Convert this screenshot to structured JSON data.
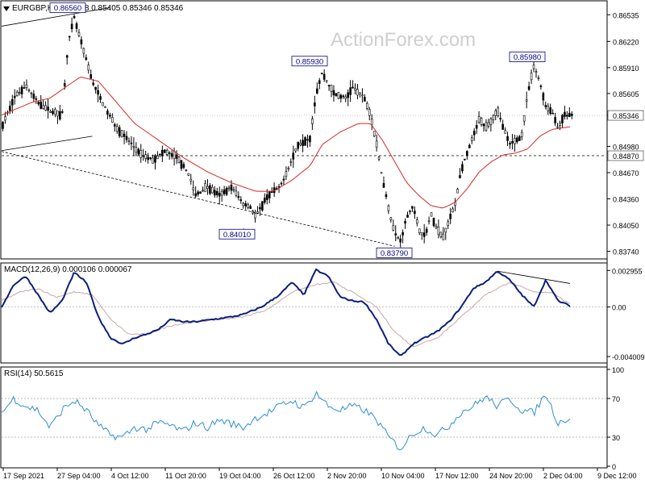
{
  "header": {
    "symbol_line": "EURGBP,H4  0.85388 0.85405 0.85346 0.85346"
  },
  "watermark": "ActionForex.com",
  "colors": {
    "candle": "#000000",
    "sma": "#d62728",
    "macd_line": "#0b1f7a",
    "macd_signal": "#c8a8a8",
    "rsi": "#2f8fd0",
    "annotation": "#000080",
    "trendline": "#000000",
    "grid": "#a0a0a0"
  },
  "chart_data": [
    {
      "type": "candlestick",
      "name": "price",
      "title": "EURGBP,H4",
      "ylim": [
        0.8366,
        0.8669
      ],
      "y_ticks": [
        "0.86535",
        "0.86220",
        "0.85910",
        "0.85605",
        "0.85346",
        "0.84980",
        "0.84670",
        "0.84360",
        "0.84050",
        "0.83740"
      ],
      "current_price": "0.85346",
      "horizontal_level": "0.84870",
      "annotations": [
        {
          "label": "0.86560",
          "x": 0.12,
          "y": 0.8656
        },
        {
          "label": "0.85930",
          "x": 0.52,
          "y": 0.8593
        },
        {
          "label": "0.84010",
          "x": 0.4,
          "y": 0.8401
        },
        {
          "label": "0.83790",
          "x": 0.66,
          "y": 0.8379
        },
        {
          "label": "0.85980",
          "x": 0.88,
          "y": 0.8598
        }
      ],
      "anchors": [
        [
          0.0,
          0.852
        ],
        [
          0.02,
          0.8555
        ],
        [
          0.04,
          0.857
        ],
        [
          0.06,
          0.855
        ],
        [
          0.08,
          0.854
        ],
        [
          0.1,
          0.8535
        ],
        [
          0.11,
          0.862
        ],
        [
          0.12,
          0.865
        ],
        [
          0.13,
          0.8625
        ],
        [
          0.15,
          0.8575
        ],
        [
          0.17,
          0.8545
        ],
        [
          0.19,
          0.852
        ],
        [
          0.21,
          0.8505
        ],
        [
          0.23,
          0.8488
        ],
        [
          0.25,
          0.8482
        ],
        [
          0.27,
          0.8492
        ],
        [
          0.29,
          0.8485
        ],
        [
          0.31,
          0.8465
        ],
        [
          0.32,
          0.844
        ],
        [
          0.34,
          0.845
        ],
        [
          0.36,
          0.844
        ],
        [
          0.38,
          0.845
        ],
        [
          0.4,
          0.843
        ],
        [
          0.41,
          0.8428
        ],
        [
          0.42,
          0.8415
        ],
        [
          0.44,
          0.844
        ],
        [
          0.46,
          0.845
        ],
        [
          0.47,
          0.8465
        ],
        [
          0.49,
          0.85
        ],
        [
          0.51,
          0.8508
        ],
        [
          0.52,
          0.856
        ],
        [
          0.53,
          0.8585
        ],
        [
          0.55,
          0.856
        ],
        [
          0.57,
          0.8555
        ],
        [
          0.58,
          0.8568
        ],
        [
          0.6,
          0.8555
        ],
        [
          0.61,
          0.8535
        ],
        [
          0.62,
          0.85
        ],
        [
          0.63,
          0.846
        ],
        [
          0.64,
          0.8425
        ],
        [
          0.65,
          0.8395
        ],
        [
          0.66,
          0.8386
        ],
        [
          0.67,
          0.8415
        ],
        [
          0.68,
          0.8428
        ],
        [
          0.69,
          0.84
        ],
        [
          0.7,
          0.8392
        ],
        [
          0.71,
          0.8418
        ],
        [
          0.72,
          0.84
        ],
        [
          0.73,
          0.839
        ],
        [
          0.74,
          0.841
        ],
        [
          0.75,
          0.843
        ],
        [
          0.76,
          0.847
        ],
        [
          0.77,
          0.849
        ],
        [
          0.78,
          0.851
        ],
        [
          0.79,
          0.853
        ],
        [
          0.8,
          0.852
        ],
        [
          0.81,
          0.8528
        ],
        [
          0.82,
          0.854
        ],
        [
          0.83,
          0.852
        ],
        [
          0.84,
          0.85
        ],
        [
          0.85,
          0.8505
        ],
        [
          0.86,
          0.851
        ],
        [
          0.87,
          0.856
        ],
        [
          0.88,
          0.8592
        ],
        [
          0.89,
          0.8575
        ],
        [
          0.9,
          0.8545
        ],
        [
          0.91,
          0.854
        ],
        [
          0.92,
          0.852
        ],
        [
          0.93,
          0.8535
        ],
        [
          0.94,
          0.8535
        ]
      ],
      "sma_anchors": [
        [
          0.0,
          0.8535
        ],
        [
          0.05,
          0.855
        ],
        [
          0.08,
          0.8555
        ],
        [
          0.1,
          0.8565
        ],
        [
          0.13,
          0.858
        ],
        [
          0.16,
          0.8575
        ],
        [
          0.19,
          0.855
        ],
        [
          0.22,
          0.8525
        ],
        [
          0.26,
          0.8505
        ],
        [
          0.3,
          0.8485
        ],
        [
          0.34,
          0.8468
        ],
        [
          0.38,
          0.8455
        ],
        [
          0.42,
          0.8445
        ],
        [
          0.45,
          0.8445
        ],
        [
          0.48,
          0.8458
        ],
        [
          0.51,
          0.8475
        ],
        [
          0.53,
          0.85
        ],
        [
          0.56,
          0.8515
        ],
        [
          0.59,
          0.8525
        ],
        [
          0.61,
          0.8525
        ],
        [
          0.63,
          0.8505
        ],
        [
          0.65,
          0.848
        ],
        [
          0.67,
          0.8455
        ],
        [
          0.69,
          0.844
        ],
        [
          0.71,
          0.8428
        ],
        [
          0.73,
          0.8425
        ],
        [
          0.75,
          0.8432
        ],
        [
          0.77,
          0.8448
        ],
        [
          0.79,
          0.8468
        ],
        [
          0.81,
          0.848
        ],
        [
          0.83,
          0.8488
        ],
        [
          0.85,
          0.849
        ],
        [
          0.87,
          0.8495
        ],
        [
          0.89,
          0.851
        ],
        [
          0.91,
          0.8518
        ],
        [
          0.93,
          0.852
        ],
        [
          0.94,
          0.8521
        ]
      ],
      "trendlines": [
        {
          "from": [
            0.0,
            0.864
          ],
          "to": [
            0.18,
            0.8662
          ],
          "style": "solid"
        },
        {
          "from": [
            0.0,
            0.8493
          ],
          "to": [
            0.15,
            0.851
          ],
          "style": "solid"
        },
        {
          "from": [
            0.0,
            0.8492
          ],
          "to": [
            0.65,
            0.838
          ],
          "style": "dashed"
        }
      ]
    },
    {
      "type": "line",
      "name": "macd",
      "title": "MACD(12,26,9) 0.000106 0.000067",
      "ylim": [
        -0.0044,
        0.0033
      ],
      "y_ticks": [
        "0.002955",
        "0.00",
        "-0.004009"
      ],
      "zero_label": "0.00",
      "series": [
        {
          "name": "MACD",
          "points": [
            [
              0.0,
              0.0
            ],
            [
              0.02,
              0.0018
            ],
            [
              0.04,
              0.0025
            ],
            [
              0.06,
              0.001
            ],
            [
              0.08,
              -0.0005
            ],
            [
              0.1,
              0.0005
            ],
            [
              0.12,
              0.0028
            ],
            [
              0.14,
              0.002
            ],
            [
              0.16,
              -0.0008
            ],
            [
              0.18,
              -0.0025
            ],
            [
              0.2,
              -0.003
            ],
            [
              0.22,
              -0.0025
            ],
            [
              0.24,
              -0.0022
            ],
            [
              0.26,
              -0.0018
            ],
            [
              0.28,
              -0.001
            ],
            [
              0.3,
              -0.0012
            ],
            [
              0.32,
              -0.0012
            ],
            [
              0.35,
              -0.001
            ],
            [
              0.38,
              -0.0008
            ],
            [
              0.4,
              -0.0006
            ],
            [
              0.43,
              0.0
            ],
            [
              0.46,
              0.001
            ],
            [
              0.48,
              0.002
            ],
            [
              0.5,
              0.001
            ],
            [
              0.52,
              0.003
            ],
            [
              0.54,
              0.0025
            ],
            [
              0.56,
              0.0008
            ],
            [
              0.58,
              0.0005
            ],
            [
              0.6,
              0.0004
            ],
            [
              0.62,
              -0.001
            ],
            [
              0.64,
              -0.003
            ],
            [
              0.66,
              -0.004
            ],
            [
              0.68,
              -0.003
            ],
            [
              0.7,
              -0.0025
            ],
            [
              0.72,
              -0.002
            ],
            [
              0.74,
              -0.0012
            ],
            [
              0.76,
              0.0
            ],
            [
              0.78,
              0.0015
            ],
            [
              0.8,
              0.002
            ],
            [
              0.82,
              0.0029
            ],
            [
              0.84,
              0.0022
            ],
            [
              0.86,
              0.001
            ],
            [
              0.88,
              0.0
            ],
            [
              0.9,
              0.0022
            ],
            [
              0.92,
              0.0005
            ],
            [
              0.94,
              0.0001
            ]
          ]
        },
        {
          "name": "Signal",
          "points": [
            [
              0.0,
              0.0005
            ],
            [
              0.03,
              0.0012
            ],
            [
              0.06,
              0.0015
            ],
            [
              0.09,
              0.0008
            ],
            [
              0.12,
              0.0012
            ],
            [
              0.15,
              0.001
            ],
            [
              0.18,
              -0.001
            ],
            [
              0.21,
              -0.0022
            ],
            [
              0.24,
              -0.0022
            ],
            [
              0.28,
              -0.0015
            ],
            [
              0.32,
              -0.0012
            ],
            [
              0.36,
              -0.001
            ],
            [
              0.4,
              -0.0008
            ],
            [
              0.44,
              -0.0002
            ],
            [
              0.48,
              0.0012
            ],
            [
              0.52,
              0.0018
            ],
            [
              0.55,
              0.002
            ],
            [
              0.58,
              0.0012
            ],
            [
              0.62,
              0.0
            ],
            [
              0.65,
              -0.002
            ],
            [
              0.68,
              -0.0032
            ],
            [
              0.72,
              -0.0025
            ],
            [
              0.76,
              -0.0008
            ],
            [
              0.8,
              0.001
            ],
            [
              0.84,
              0.002
            ],
            [
              0.88,
              0.0012
            ],
            [
              0.91,
              0.0012
            ],
            [
              0.94,
              0.0002
            ]
          ]
        }
      ],
      "trendline": {
        "from": [
          0.82,
          0.0029
        ],
        "to": [
          0.94,
          0.0019
        ]
      }
    },
    {
      "type": "line",
      "name": "rsi",
      "title": "RSI(14) 50.5615",
      "ylim": [
        0,
        100
      ],
      "y_ticks": [
        "100",
        "70",
        "30",
        "0"
      ],
      "levels": [
        70,
        30
      ],
      "series": [
        {
          "name": "RSI(14)",
          "points": [
            [
              0.0,
              55
            ],
            [
              0.02,
              70
            ],
            [
              0.04,
              62
            ],
            [
              0.06,
              58
            ],
            [
              0.08,
              40
            ],
            [
              0.1,
              58
            ],
            [
              0.12,
              68
            ],
            [
              0.14,
              58
            ],
            [
              0.16,
              42
            ],
            [
              0.18,
              32
            ],
            [
              0.2,
              30
            ],
            [
              0.22,
              40
            ],
            [
              0.24,
              38
            ],
            [
              0.26,
              45
            ],
            [
              0.28,
              42
            ],
            [
              0.3,
              36
            ],
            [
              0.32,
              45
            ],
            [
              0.34,
              40
            ],
            [
              0.36,
              48
            ],
            [
              0.38,
              44
            ],
            [
              0.4,
              40
            ],
            [
              0.42,
              50
            ],
            [
              0.44,
              55
            ],
            [
              0.46,
              62
            ],
            [
              0.48,
              68
            ],
            [
              0.5,
              60
            ],
            [
              0.52,
              76
            ],
            [
              0.54,
              62
            ],
            [
              0.56,
              58
            ],
            [
              0.58,
              62
            ],
            [
              0.6,
              58
            ],
            [
              0.62,
              48
            ],
            [
              0.64,
              30
            ],
            [
              0.66,
              18
            ],
            [
              0.68,
              34
            ],
            [
              0.7,
              40
            ],
            [
              0.72,
              32
            ],
            [
              0.74,
              42
            ],
            [
              0.76,
              56
            ],
            [
              0.78,
              62
            ],
            [
              0.8,
              72
            ],
            [
              0.82,
              62
            ],
            [
              0.84,
              70
            ],
            [
              0.86,
              58
            ],
            [
              0.88,
              55
            ],
            [
              0.9,
              75
            ],
            [
              0.92,
              45
            ],
            [
              0.94,
              50
            ]
          ]
        }
      ]
    }
  ],
  "x_axis": {
    "labels": [
      "17 Sep 2021",
      "27 Sep 04:00",
      "4 Oct 12:00",
      "11 Oct 20:00",
      "19 Oct 04:00",
      "26 Oct 12:00",
      "2 Nov 20:00",
      "10 Nov 04:00",
      "17 Nov 12:00",
      "24 Nov 20:00",
      "2 Dec 04:00",
      "9 Dec 12:00"
    ]
  }
}
